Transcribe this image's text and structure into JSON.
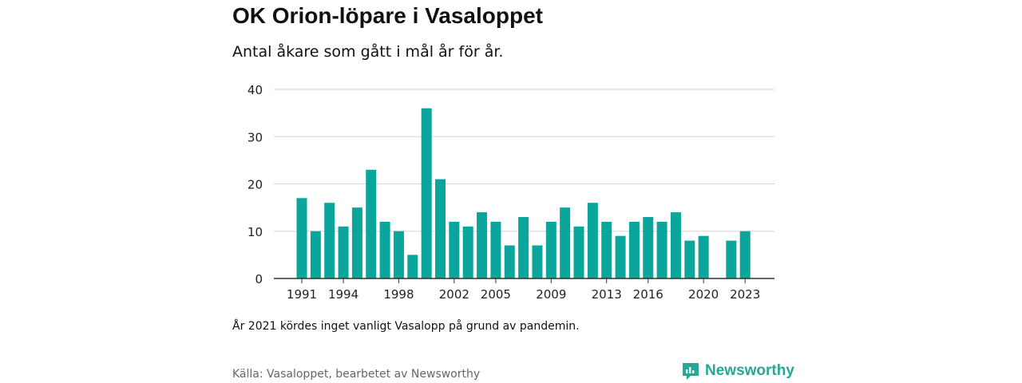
{
  "header": {
    "title": "OK Orion-löpare i Vasaloppet",
    "subtitle": "Antal åkare som gått i mål år för år."
  },
  "footer": {
    "note": "År 2021 kördes inget vanligt Vasalopp på grund av pandemin.",
    "source": "Källa: Vasaloppet, bearbetet av Newsworthy",
    "brand": "Newsworthy"
  },
  "colors": {
    "bar": "#0aa59b",
    "grid": "#d6d6d6",
    "axis": "#333333",
    "brand": "#27a69a"
  },
  "chart_data": {
    "type": "bar",
    "categories": [
      "1991",
      "1992",
      "1993",
      "1994",
      "1995",
      "1996",
      "1997",
      "1998",
      "1999",
      "2000",
      "2001",
      "2002",
      "2003",
      "2004",
      "2005",
      "2006",
      "2007",
      "2008",
      "2009",
      "2010",
      "2011",
      "2012",
      "2013",
      "2014",
      "2015",
      "2016",
      "2017",
      "2018",
      "2019",
      "2020",
      "2021",
      "2022",
      "2023"
    ],
    "values": [
      17,
      10,
      16,
      11,
      15,
      23,
      12,
      10,
      5,
      36,
      21,
      12,
      11,
      14,
      12,
      7,
      13,
      7,
      12,
      15,
      11,
      16,
      12,
      9,
      12,
      13,
      12,
      14,
      8,
      9,
      null,
      8,
      10
    ],
    "x_tick_labels": [
      "1991",
      "1994",
      "1998",
      "2002",
      "2005",
      "2009",
      "2013",
      "2016",
      "2020",
      "2023"
    ],
    "y_ticks": [
      0,
      10,
      20,
      30,
      40
    ],
    "ylim": [
      0,
      40
    ],
    "grid": true,
    "xlabel": "",
    "ylabel": ""
  }
}
